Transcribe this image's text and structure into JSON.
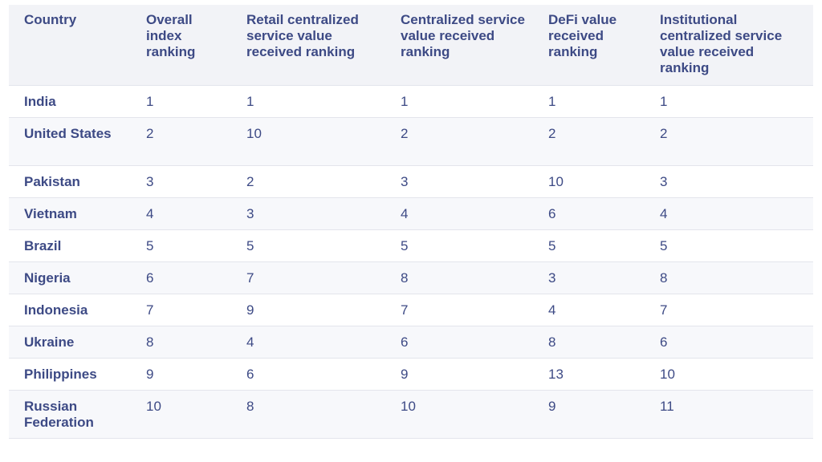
{
  "table": {
    "headers": [
      "Country",
      "Overall index ranking",
      "Retail centralized service value received ranking",
      "Centralized service value received ranking",
      "DeFi value received ranking",
      "Institutional centralized service value received ranking"
    ],
    "rows": [
      [
        "India",
        "1",
        "1",
        "1",
        "1",
        "1"
      ],
      [
        "United States",
        "2",
        "10",
        "2",
        "2",
        "2"
      ],
      [
        "Pakistan",
        "3",
        "2",
        "3",
        "10",
        "3"
      ],
      [
        "Vietnam",
        "4",
        "3",
        "4",
        "6",
        "4"
      ],
      [
        "Brazil",
        "5",
        "5",
        "5",
        "5",
        "5"
      ],
      [
        "Nigeria",
        "6",
        "7",
        "8",
        "3",
        "8"
      ],
      [
        "Indonesia",
        "7",
        "9",
        "7",
        "4",
        "7"
      ],
      [
        "Ukraine",
        "8",
        "4",
        "6",
        "8",
        "6"
      ],
      [
        "Philippines",
        "9",
        "6",
        "9",
        "13",
        "10"
      ],
      [
        "Russian Federation",
        "10",
        "8",
        "10",
        "9",
        "11"
      ]
    ]
  },
  "colors": {
    "text": "#3d4a85",
    "header_bg": "#f2f3f7",
    "border": "#e3e5ec"
  }
}
